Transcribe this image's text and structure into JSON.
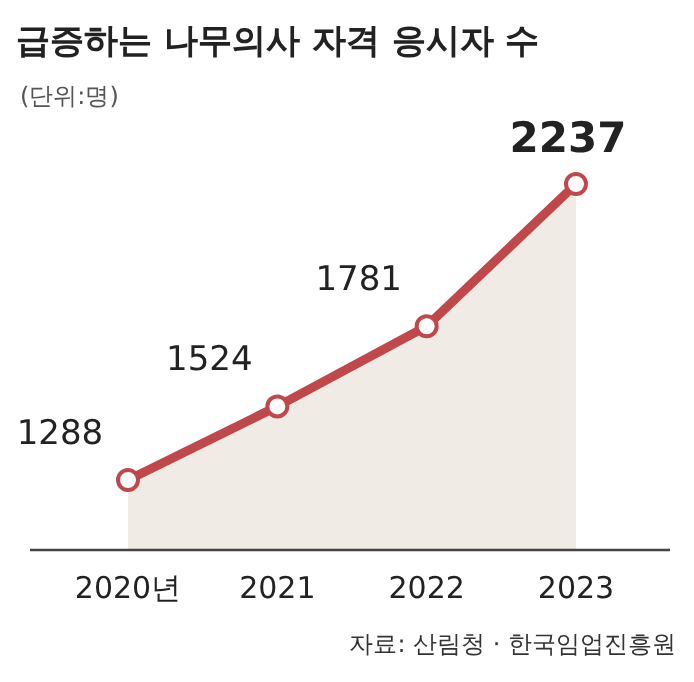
{
  "chart_data": {
    "type": "area",
    "title": "급증하는 나무의사 자격 응시자 수",
    "subtitle": "(단위:명)",
    "categories": [
      "2020년",
      "2021",
      "2022",
      "2023"
    ],
    "values": [
      1288,
      1524,
      1781,
      2237
    ],
    "color": "#c0474a",
    "data_labels": true,
    "marker": "circle",
    "annotations": [
      "자료: 산림청 · 한국임업진흥원"
    ]
  }
}
